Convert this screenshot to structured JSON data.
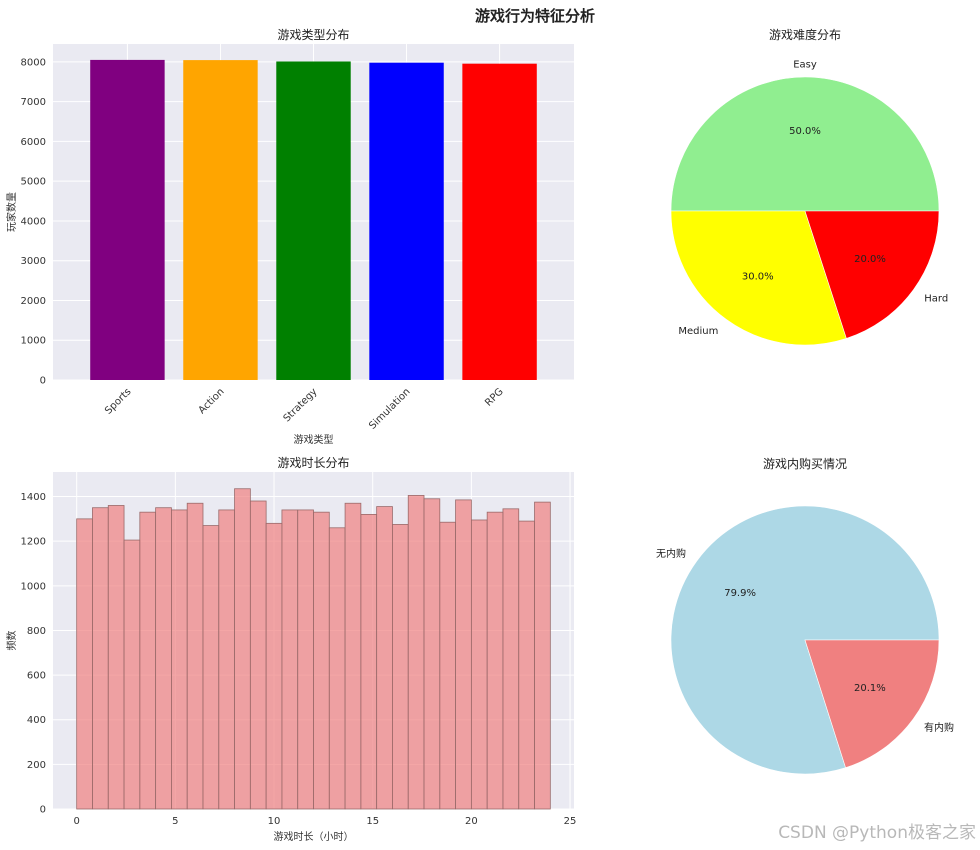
{
  "figure": {
    "title": "游戏行为特征分析",
    "watermark": "CSDN @Python极客之家"
  },
  "chart_data": [
    {
      "type": "bar",
      "title": "游戏类型分布",
      "xlabel": "游戏类型",
      "ylabel": "玩家数量",
      "categories": [
        "Sports",
        "Action",
        "Strategy",
        "Simulation",
        "RPG"
      ],
      "values": [
        8050,
        8045,
        8010,
        7980,
        7955
      ],
      "colors": [
        "#800080",
        "#ffa500",
        "#008000",
        "#0000ff",
        "#ff0000"
      ],
      "ylim": [
        0,
        8450
      ],
      "yticks": [
        0,
        1000,
        2000,
        3000,
        4000,
        5000,
        6000,
        7000,
        8000
      ],
      "grid": true
    },
    {
      "type": "pie",
      "title": "游戏难度分布",
      "labels": [
        "Easy",
        "Medium",
        "Hard"
      ],
      "values": [
        50.0,
        30.0,
        20.0
      ],
      "pct_labels": [
        "50.0%",
        "30.0%",
        "20.0%"
      ],
      "colors": [
        "#90ee90",
        "#ffff00",
        "#ff0000"
      ]
    },
    {
      "type": "bar",
      "title": "游戏时长分布",
      "xlabel": "游戏时长（小时）",
      "ylabel": "频数",
      "bin_edges": [
        0,
        0.8,
        1.6,
        2.4,
        3.2,
        4.0,
        4.8,
        5.6,
        6.4,
        7.2,
        8.0,
        8.8,
        9.6,
        10.4,
        11.2,
        12.0,
        12.8,
        13.6,
        14.4,
        15.2,
        16.0,
        16.8,
        17.6,
        18.4,
        19.2,
        20.0,
        20.8,
        21.6,
        22.4,
        23.2,
        24.0
      ],
      "counts": [
        1300,
        1350,
        1360,
        1205,
        1330,
        1350,
        1340,
        1370,
        1270,
        1340,
        1435,
        1380,
        1280,
        1340,
        1340,
        1330,
        1260,
        1370,
        1320,
        1355,
        1275,
        1405,
        1390,
        1285,
        1385,
        1295,
        1330,
        1345,
        1290,
        1375
      ],
      "color": "#f08080",
      "xlim": [
        -1.2,
        25.2
      ],
      "ylim": [
        0,
        1510
      ],
      "xticks": [
        0,
        5,
        10,
        15,
        20,
        25
      ],
      "yticks": [
        0,
        200,
        400,
        600,
        800,
        1000,
        1200,
        1400
      ],
      "grid": true
    },
    {
      "type": "pie",
      "title": "游戏内购买情况",
      "labels": [
        "无内购",
        "有内购"
      ],
      "values": [
        79.9,
        20.1
      ],
      "pct_labels": [
        "79.9%",
        "20.1%"
      ],
      "colors": [
        "#add8e6",
        "#f08080"
      ]
    }
  ]
}
